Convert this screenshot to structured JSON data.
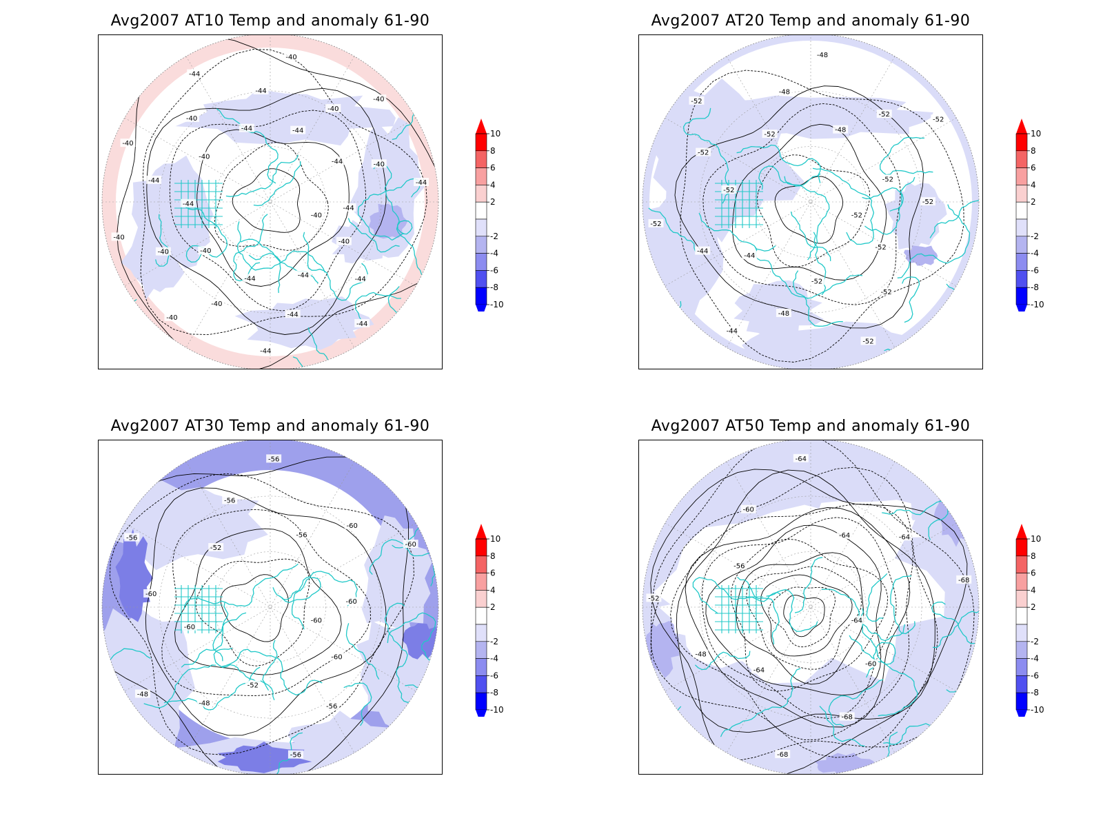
{
  "panels": [
    {
      "id": "at10",
      "title": "Avg2007 AT10 Temp and anomaly 61-90",
      "contour_labels": [
        "-40",
        "-40",
        "-44",
        "-44",
        "-44",
        "-44",
        "-44",
        "-44",
        "-40",
        "-40",
        "-40",
        "-40",
        "-40",
        "-44",
        "-44",
        "-40",
        "-40",
        "-40",
        "-44",
        "-44",
        "-44",
        "-40",
        "-44",
        "-40",
        "-40",
        "-44",
        "-40",
        "-44",
        "-44"
      ],
      "base_anomaly": "light-blue",
      "colors": {
        "ring": "#fadcdc",
        "base": "#ffffff",
        "patch": "#dadcf8",
        "patch2": "#b4b4f0"
      }
    },
    {
      "id": "at20",
      "title": "Avg2007 AT20 Temp and anomaly 61-90",
      "contour_labels": [
        "-52",
        "-52",
        "-52",
        "-52",
        "-52",
        "-48",
        "-44",
        "-44",
        "-44",
        "-52",
        "-52",
        "-52",
        "-52",
        "-52",
        "-48",
        "-48",
        "-48",
        "-52",
        "-52",
        "-52",
        "-52"
      ],
      "colors": {
        "ring": "#dadcf8",
        "base": "#ffffff",
        "patch": "#dadcf8",
        "patch2": "#b4b4f0"
      }
    },
    {
      "id": "at30",
      "title": "Avg2007 AT30 Temp and anomaly 61-90",
      "contour_labels": [
        "-60",
        "-60",
        "-56",
        "-56",
        "-52",
        "-48",
        "-48",
        "-60",
        "-60",
        "-56",
        "-52",
        "-56",
        "-56",
        "-56",
        "-60",
        "-60",
        "-60"
      ],
      "colors": {
        "ring": "#9ea0ec",
        "base": "#ffffff",
        "patch": "#dadcf8",
        "patch2": "#7c7ee6"
      }
    },
    {
      "id": "at50",
      "title": "Avg2007 AT50 Temp and anomaly 61-90",
      "contour_labels": [
        "-64",
        "-60",
        "-68",
        "-68",
        "-64",
        "-48",
        "-52",
        "-56",
        "-60",
        "-64",
        "-64",
        "-64",
        "-68"
      ],
      "colors": {
        "ring": "#dadcf8",
        "base": "#dadcf8",
        "patch": "#ffffff",
        "patch2": "#b4b4f0"
      }
    }
  ],
  "colorbar": {
    "labels": [
      "10",
      "8",
      "6",
      "4",
      "2",
      "-2",
      "-4",
      "-6",
      "-8",
      "-10"
    ],
    "colors": [
      "#ff0000",
      "#f46464",
      "#f8a0a0",
      "#fad0d0",
      "#ffffff",
      "#e0e0fa",
      "#b4b4f0",
      "#8c8cf0",
      "#5050f0",
      "#0000ff"
    ],
    "arrow_top": "#ff0000",
    "arrow_bottom": "#0000ff"
  },
  "coastline_color": "#20c8c8"
}
